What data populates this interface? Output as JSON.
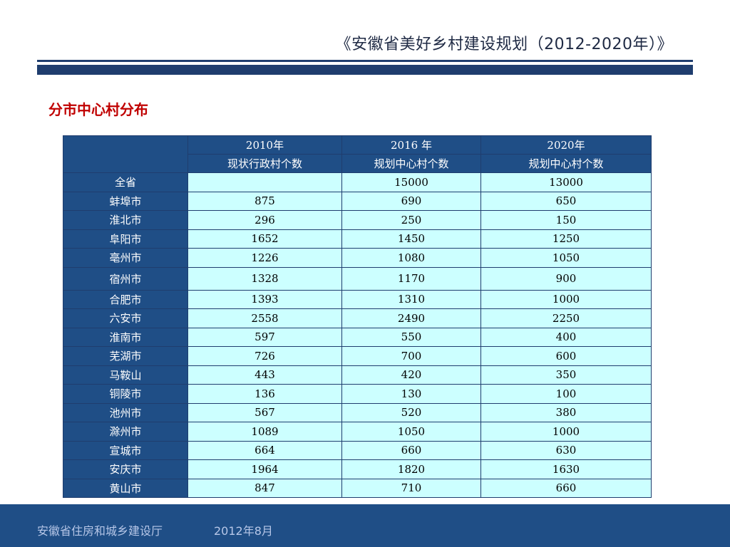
{
  "header": {
    "title": "《安徽省美好乡村建设规划（2012-2020年）》"
  },
  "section": {
    "title": "分市中心村分布"
  },
  "table": {
    "years": [
      "2010年",
      "2016 年",
      "2020年"
    ],
    "subheaders": [
      "现状行政村个数",
      "规划中心村个数",
      "规划中心村个数"
    ],
    "rows": [
      {
        "name": "全省",
        "v2010": "",
        "v2016": "15000",
        "v2020": "13000"
      },
      {
        "name": "蚌埠市",
        "v2010": "875",
        "v2016": "690",
        "v2020": "650"
      },
      {
        "name": "淮北市",
        "v2010": "296",
        "v2016": "250",
        "v2020": "150"
      },
      {
        "name": "阜阳市",
        "v2010": "1652",
        "v2016": "1450",
        "v2020": "1250"
      },
      {
        "name": "亳州市",
        "v2010": "1226",
        "v2016": "1080",
        "v2020": "1050"
      },
      {
        "name": "宿州市",
        "v2010": "1328",
        "v2016": "1170",
        "v2020": "900"
      },
      {
        "name": "合肥市",
        "v2010": "1393",
        "v2016": "1310",
        "v2020": "1000"
      },
      {
        "name": "六安市",
        "v2010": "2558",
        "v2016": "2490",
        "v2020": "2250"
      },
      {
        "name": "淮南市",
        "v2010": "597",
        "v2016": "550",
        "v2020": "400"
      },
      {
        "name": "芜湖市",
        "v2010": "726",
        "v2016": "700",
        "v2020": "600"
      },
      {
        "name": "马鞍山",
        "v2010": "443",
        "v2016": "420",
        "v2020": "350"
      },
      {
        "name": "铜陵市",
        "v2010": "136",
        "v2016": "130",
        "v2020": "100"
      },
      {
        "name": "池州市",
        "v2010": "567",
        "v2016": "520",
        "v2020": "380"
      },
      {
        "name": "滁州市",
        "v2010": "1089",
        "v2016": "1050",
        "v2020": "1000"
      },
      {
        "name": "宣城市",
        "v2010": "664",
        "v2016": "660",
        "v2020": "630"
      },
      {
        "name": "安庆市",
        "v2010": "1964",
        "v2016": "1820",
        "v2020": "1630"
      },
      {
        "name": "黄山市",
        "v2010": "847",
        "v2016": "710",
        "v2020": "660"
      }
    ]
  },
  "footer": {
    "org": "安徽省住房和城乡建设厅",
    "date": "2012年8月"
  },
  "colors": {
    "navy": "#1f4e86",
    "cell": "#ccffff",
    "accent": "#c00000"
  }
}
